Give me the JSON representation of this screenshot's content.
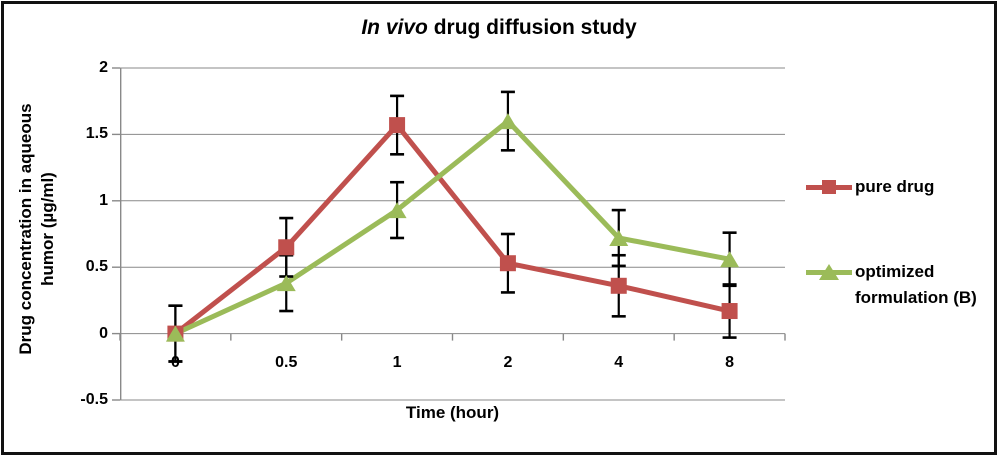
{
  "chart_data": {
    "type": "line",
    "title": "In vivo drug diffusion study",
    "title_italic": "In vivo",
    "title_rest": " drug diffusion study",
    "xlabel": "Time (hour)",
    "ylabel": "Drug concentration in aqueous\nhumor (µg/ml)",
    "categories": [
      "0",
      "0.5",
      "1",
      "2",
      "4",
      "8"
    ],
    "y_ticks": [
      "2",
      "1.5",
      "1",
      "0.5",
      "0",
      "-0.5"
    ],
    "ylim": [
      -0.5,
      2
    ],
    "grid": true,
    "legend_position": "right",
    "gridline_color": "#898989",
    "axis_color": "#898989",
    "error_bar_color": "#000000",
    "series": [
      {
        "name": "pure drug",
        "color": "#C0504D",
        "marker": "square",
        "values": [
          0.0,
          0.65,
          1.57,
          0.53,
          0.36,
          0.17
        ],
        "errors": [
          0.21,
          0.22,
          0.22,
          0.22,
          0.23,
          0.2
        ]
      },
      {
        "name": "optimized formulation (B)",
        "color": "#9BBB59",
        "marker": "triangle",
        "values": [
          0.0,
          0.38,
          0.93,
          1.6,
          0.72,
          0.56
        ],
        "errors": [
          0.21,
          0.21,
          0.21,
          0.22,
          0.21,
          0.2
        ]
      }
    ]
  }
}
